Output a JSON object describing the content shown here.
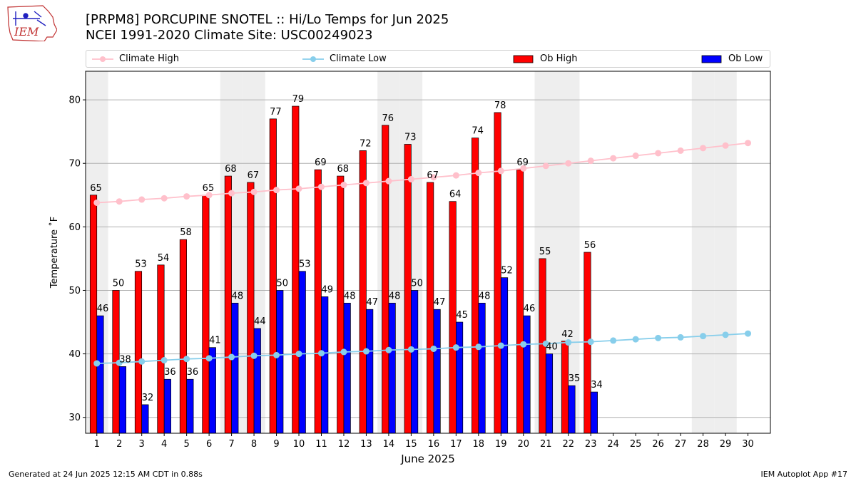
{
  "header": {
    "title_line1": "[PRPM8] PORCUPINE SNOTEL :: Hi/Lo Temps for Jun 2025",
    "title_line2": "NCEI 1991-2020 Climate Site: USC00249023",
    "logo_text": "IEM"
  },
  "legend": {
    "climate_high": "Climate High",
    "climate_low": "Climate Low",
    "ob_high": "Ob High",
    "ob_low": "Ob Low"
  },
  "footer": {
    "generated": "Generated at 24 Jun 2025 12:15 AM CDT in 0.88s",
    "app": "IEM Autoplot App #17"
  },
  "colors": {
    "ob_high": "#ff0000",
    "ob_low": "#0000ff",
    "climate_high": "#ffc0cb",
    "climate_low": "#87ceeb",
    "weekend_band": "#eeeeee",
    "grid": "#b0b0b0"
  },
  "chart_data": {
    "type": "bar",
    "xlabel": "June 2025",
    "ylabel": "Temperature ˚F",
    "ylim": [
      27.5,
      84.5
    ],
    "yticks": [
      30,
      40,
      50,
      60,
      70,
      80
    ],
    "grid": "horizontal",
    "legend_position": "top",
    "categories": [
      "1",
      "2",
      "3",
      "4",
      "5",
      "6",
      "7",
      "8",
      "9",
      "10",
      "11",
      "12",
      "13",
      "14",
      "15",
      "16",
      "17",
      "18",
      "19",
      "20",
      "21",
      "22",
      "23",
      "24",
      "25",
      "26",
      "27",
      "28",
      "29",
      "30"
    ],
    "weekend_days": [
      1,
      7,
      8,
      14,
      15,
      21,
      22,
      28,
      29
    ],
    "series": [
      {
        "name": "Ob High",
        "type": "bar",
        "values": [
          65,
          50,
          53,
          54,
          58,
          65,
          68,
          67,
          77,
          79,
          69,
          68,
          72,
          76,
          73,
          67,
          64,
          74,
          78,
          69,
          55,
          42,
          56,
          null,
          null,
          null,
          null,
          null,
          null,
          null
        ]
      },
      {
        "name": "Ob Low",
        "type": "bar",
        "values": [
          46,
          38,
          32,
          36,
          36,
          41,
          48,
          44,
          50,
          53,
          49,
          48,
          47,
          48,
          50,
          47,
          45,
          48,
          52,
          46,
          40,
          35,
          34,
          null,
          null,
          null,
          null,
          null,
          null,
          null
        ]
      },
      {
        "name": "Climate High",
        "type": "line",
        "values": [
          63.8,
          64.0,
          64.3,
          64.5,
          64.8,
          65.0,
          65.3,
          65.5,
          65.8,
          66.0,
          66.3,
          66.6,
          66.9,
          67.2,
          67.5,
          67.8,
          68.1,
          68.5,
          68.8,
          69.2,
          69.6,
          70.0,
          70.4,
          70.8,
          71.2,
          71.6,
          72.0,
          72.4,
          72.8,
          73.2
        ]
      },
      {
        "name": "Climate Low",
        "type": "line",
        "values": [
          38.5,
          38.6,
          38.8,
          39.0,
          39.2,
          39.3,
          39.5,
          39.7,
          39.8,
          40.0,
          40.1,
          40.3,
          40.4,
          40.6,
          40.7,
          40.8,
          41.0,
          41.1,
          41.3,
          41.5,
          41.6,
          41.8,
          41.9,
          42.1,
          42.3,
          42.5,
          42.6,
          42.8,
          43.0,
          43.2
        ]
      }
    ]
  }
}
